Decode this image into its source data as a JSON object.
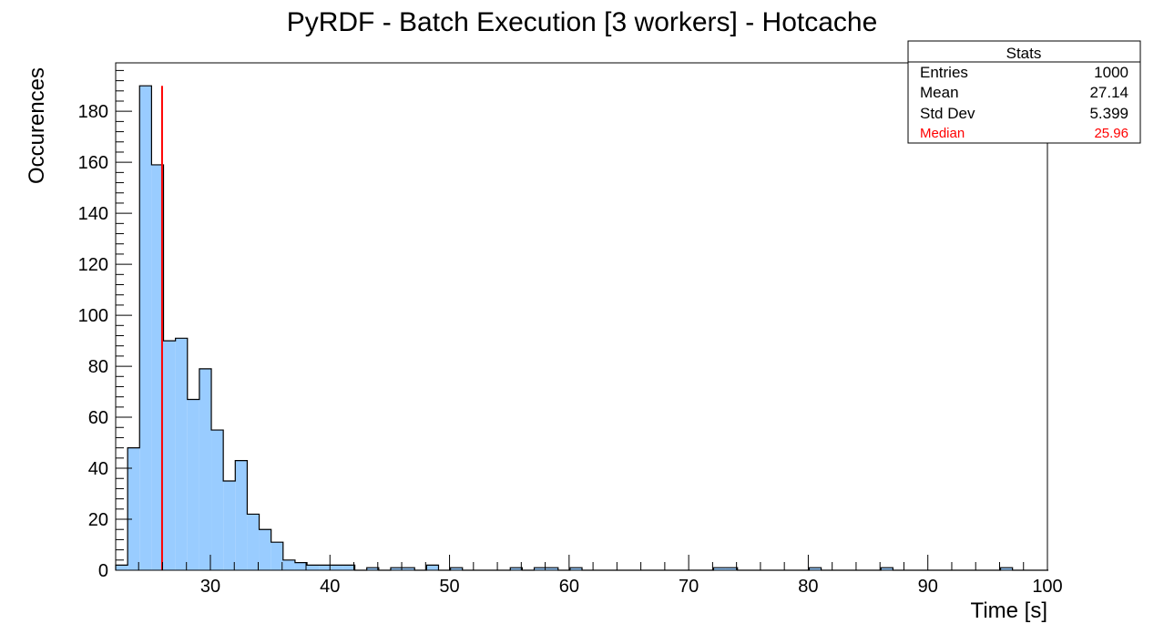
{
  "chart_data": {
    "type": "bar",
    "title": "PyRDF - Batch Execution [3 workers] - Hotcache",
    "xlabel": "Time [s]",
    "ylabel": "Occurences",
    "xlim": [
      22.08,
      100
    ],
    "ylim": [
      0,
      199
    ],
    "bin_width": 1,
    "xticks": [
      "30",
      "40",
      "50",
      "60",
      "70",
      "80",
      "90",
      "100"
    ],
    "yticks": [
      "0",
      "20",
      "40",
      "60",
      "80",
      "100",
      "120",
      "140",
      "160",
      "180"
    ],
    "bin_starts": [
      22.08,
      23.08,
      24.08,
      25.08,
      26.08,
      27.08,
      28.08,
      29.08,
      30.08,
      31.08,
      32.08,
      33.08,
      34.08,
      35.08,
      36.08,
      37.08,
      38.08,
      39.08,
      40.08,
      41.08,
      42.08,
      43.08,
      44.08,
      45.08,
      46.08,
      47.08,
      48.08,
      49.08,
      50.08,
      51.08,
      52.08,
      53.08,
      54.08,
      55.08,
      56.08,
      57.08,
      58.08,
      59.08,
      60.08,
      61.08,
      62.08,
      63.08,
      64.08,
      65.08,
      66.08,
      67.08,
      68.08,
      69.08,
      70.08,
      71.08,
      72.08,
      73.08,
      74.08,
      75.08,
      76.08,
      77.08,
      78.08,
      79.08,
      80.08,
      81.08,
      82.08,
      83.08,
      84.08,
      85.08,
      86.08,
      87.08,
      88.08,
      89.08,
      90.08,
      91.08,
      92.08,
      93.08,
      94.08,
      95.08,
      96.08,
      97.08,
      98.08,
      99.08
    ],
    "counts": [
      2,
      48,
      190,
      159,
      90,
      91,
      67,
      79,
      55,
      35,
      43,
      22,
      16,
      11,
      4,
      3,
      2,
      2,
      2,
      2,
      0,
      1,
      0,
      1,
      1,
      0,
      2,
      0,
      1,
      0,
      0,
      0,
      0,
      1,
      0,
      1,
      1,
      0,
      1,
      0,
      0,
      0,
      0,
      0,
      0,
      0,
      0,
      0,
      0,
      0,
      1,
      1,
      0,
      0,
      0,
      0,
      0,
      0,
      1,
      0,
      0,
      0,
      0,
      0,
      1,
      0,
      0,
      0,
      0,
      0,
      0,
      0,
      0,
      0,
      1,
      0,
      0,
      0
    ],
    "median_line": 25.96,
    "colors": {
      "fill": "#99ccff",
      "outline": "#000000",
      "median": "#ff0000"
    },
    "stats": {
      "title": "Stats",
      "rows": [
        {
          "label": "Entries",
          "value": "1000"
        },
        {
          "label": "Mean",
          "value": "27.14"
        },
        {
          "label": "Std Dev",
          "value": "5.399"
        },
        {
          "label": "Median",
          "value": "25.96"
        }
      ]
    }
  }
}
